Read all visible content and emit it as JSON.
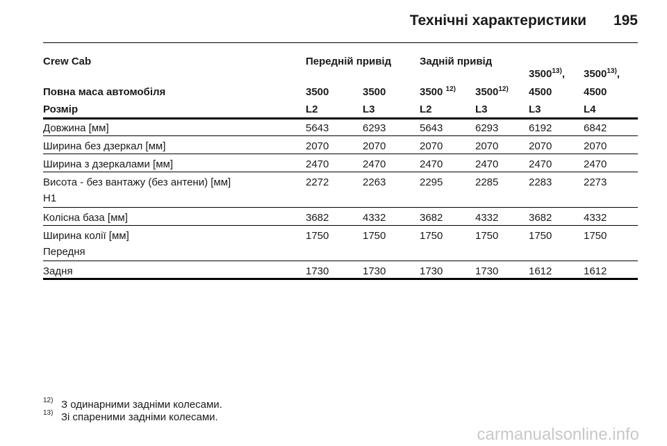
{
  "header": {
    "title": "Технічні характеристики",
    "page": "195"
  },
  "table": {
    "group_header": {
      "label": "Crew Cab",
      "front": "Передній привід",
      "rear": "Задній привід"
    },
    "mass": {
      "label": "Повна маса автомобіля",
      "columns": [
        {
          "text": "3500"
        },
        {
          "text": "3500"
        },
        {
          "text": "3500",
          "note": "12)"
        },
        {
          "text": "3500",
          "note": "12)"
        },
        {
          "text": "3500",
          "note": "13)",
          "suffix": ",",
          "line2": "4500"
        },
        {
          "text": "3500",
          "note": "13)",
          "suffix": ",",
          "line2": "4500"
        }
      ]
    },
    "size": {
      "label": "Розмір",
      "values": [
        "L2",
        "L3",
        "L2",
        "L3",
        "L3",
        "L4"
      ]
    },
    "rows": [
      {
        "label": "Довжина [мм]",
        "values": [
          5643,
          6293,
          5643,
          6293,
          6192,
          6842
        ]
      },
      {
        "label": "Ширина без дзеркал [мм]",
        "values": [
          2070,
          2070,
          2070,
          2070,
          2070,
          2070
        ]
      },
      {
        "label": "Ширина з дзеркалами [мм]",
        "values": [
          2470,
          2470,
          2470,
          2470,
          2470,
          2470
        ]
      },
      {
        "label": "Висота - без вантажу (без антени) [мм]",
        "sublabel": "H1",
        "values": [
          2272,
          2263,
          2295,
          2285,
          2283,
          2273
        ]
      },
      {
        "label": "Колісна база [мм]",
        "values": [
          3682,
          4332,
          3682,
          4332,
          3682,
          4332
        ]
      },
      {
        "label": "Ширина колії [мм]",
        "sublabel": "Передня",
        "values": [
          1750,
          1750,
          1750,
          1750,
          1750,
          1750
        ]
      },
      {
        "label": "Задня",
        "values": [
          1730,
          1730,
          1730,
          1730,
          1612,
          1612
        ]
      }
    ]
  },
  "footnotes": [
    {
      "mark": "12)",
      "text": "З одинарними задніми колесами."
    },
    {
      "mark": "13)",
      "text": "Зі спареними задніми колесами."
    }
  ],
  "watermark": "carmanualsonline.info"
}
